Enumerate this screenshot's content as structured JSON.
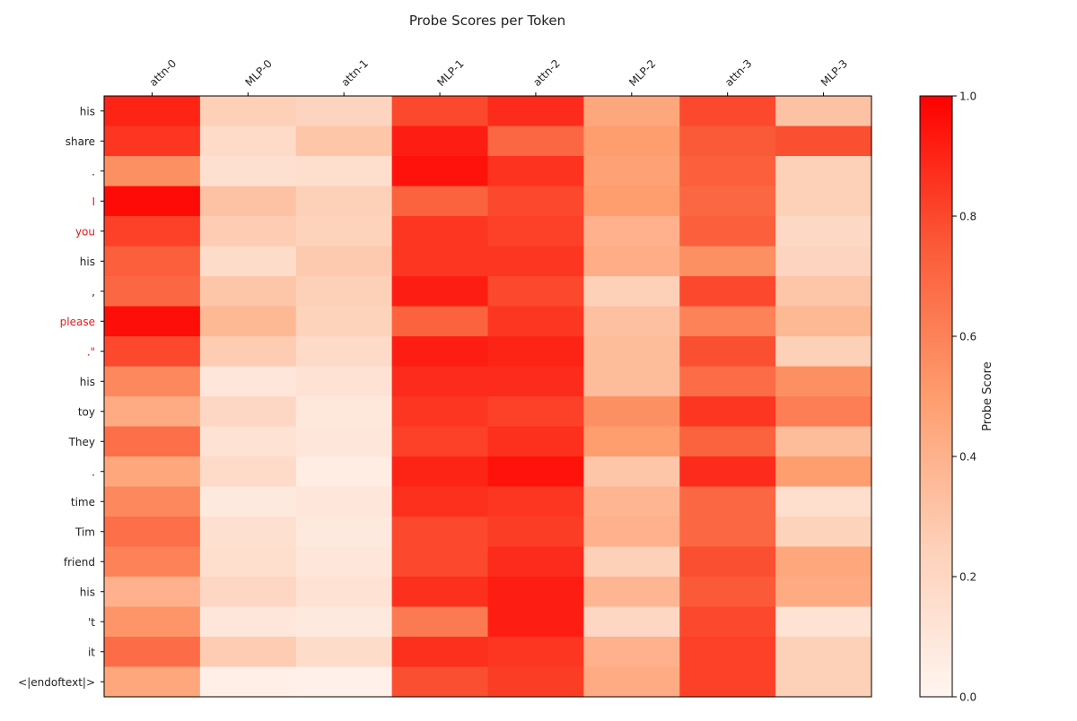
{
  "chart_data": {
    "type": "heatmap",
    "title": "Probe Scores per Token",
    "x_labels": [
      "attn-0",
      "MLP-0",
      "attn-1",
      "MLP-1",
      "attn-2",
      "MLP-2",
      "attn-3",
      "MLP-3"
    ],
    "y_labels": [
      "his",
      "share",
      ".",
      "I",
      "you",
      "his",
      ",",
      "please",
      ".\"",
      "his",
      "toy",
      "They",
      ".",
      "time",
      "Tim",
      "friend",
      "his",
      "'t",
      "it",
      "<|endoftext|>"
    ],
    "highlighted_rows": [
      3,
      4,
      7,
      8
    ],
    "highlight_color": "#e41a1c",
    "values": [
      [
        0.9,
        0.25,
        0.22,
        0.8,
        0.88,
        0.45,
        0.8,
        0.32
      ],
      [
        0.85,
        0.18,
        0.3,
        0.92,
        0.7,
        0.5,
        0.75,
        0.78
      ],
      [
        0.55,
        0.14,
        0.15,
        0.95,
        0.86,
        0.48,
        0.73,
        0.25
      ],
      [
        0.97,
        0.32,
        0.25,
        0.72,
        0.8,
        0.5,
        0.7,
        0.25
      ],
      [
        0.82,
        0.27,
        0.23,
        0.85,
        0.82,
        0.4,
        0.73,
        0.19
      ],
      [
        0.73,
        0.17,
        0.28,
        0.85,
        0.85,
        0.42,
        0.55,
        0.22
      ],
      [
        0.7,
        0.3,
        0.25,
        0.92,
        0.8,
        0.25,
        0.8,
        0.3
      ],
      [
        0.96,
        0.37,
        0.23,
        0.72,
        0.85,
        0.33,
        0.6,
        0.37
      ],
      [
        0.8,
        0.27,
        0.18,
        0.92,
        0.9,
        0.35,
        0.78,
        0.25
      ],
      [
        0.58,
        0.1,
        0.12,
        0.88,
        0.88,
        0.35,
        0.68,
        0.55
      ],
      [
        0.43,
        0.2,
        0.09,
        0.85,
        0.82,
        0.55,
        0.85,
        0.62
      ],
      [
        0.67,
        0.13,
        0.1,
        0.82,
        0.87,
        0.5,
        0.72,
        0.35
      ],
      [
        0.45,
        0.18,
        0.06,
        0.9,
        0.95,
        0.3,
        0.88,
        0.5
      ],
      [
        0.58,
        0.08,
        0.1,
        0.87,
        0.85,
        0.38,
        0.7,
        0.15
      ],
      [
        0.67,
        0.14,
        0.08,
        0.8,
        0.83,
        0.4,
        0.7,
        0.23
      ],
      [
        0.6,
        0.15,
        0.1,
        0.8,
        0.88,
        0.25,
        0.78,
        0.45
      ],
      [
        0.4,
        0.2,
        0.13,
        0.87,
        0.92,
        0.38,
        0.75,
        0.43
      ],
      [
        0.53,
        0.1,
        0.08,
        0.63,
        0.92,
        0.2,
        0.8,
        0.13
      ],
      [
        0.68,
        0.27,
        0.17,
        0.87,
        0.85,
        0.4,
        0.82,
        0.25
      ],
      [
        0.45,
        0.04,
        0.03,
        0.78,
        0.83,
        0.43,
        0.82,
        0.25
      ]
    ],
    "colorbar": {
      "label": "Probe Score",
      "min": 0.0,
      "max": 1.0,
      "ticks": [
        "0.0",
        "0.2",
        "0.4",
        "0.6",
        "0.8",
        "1.0"
      ]
    },
    "colormap": "white-to-red"
  }
}
